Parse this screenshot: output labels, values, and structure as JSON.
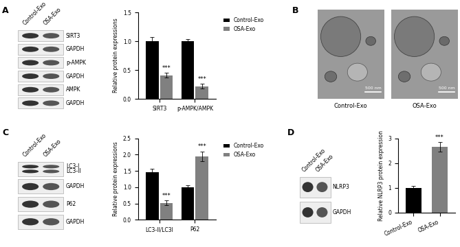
{
  "panel_labels": [
    "A",
    "B",
    "C",
    "D"
  ],
  "blots": [
    {
      "lanes": [
        "Control-Exo",
        "OSA-Exo"
      ],
      "rows": [
        [
          "SIRT3"
        ],
        [
          "GAPDH"
        ],
        [
          "p-AMPK"
        ],
        [
          "GAPDH"
        ],
        [
          "AMPK"
        ],
        [
          "GAPDH"
        ]
      ]
    },
    {
      "lanes": [
        "Control-Exo",
        "OSA-Exo"
      ],
      "rows": [
        [
          "LC3-I",
          "LC3-II"
        ],
        [
          "GAPDH"
        ],
        [
          "P62"
        ],
        [
          "GAPDH"
        ]
      ]
    },
    {
      "lanes": [
        "Control-Exo",
        "OSA-Exo"
      ],
      "rows": [
        [
          "NLRP3"
        ],
        [
          "GAPDH"
        ]
      ]
    }
  ],
  "images": {
    "labels": [
      "Control-Exo",
      "OSA-Exo"
    ],
    "scale_bar": "500 nm"
  },
  "chart_data": [
    {
      "type": "bar",
      "categories": [
        "SIRT3",
        "p-AMPK/AMPK"
      ],
      "y_label": "Relative protein expressions",
      "series": [
        {
          "name": "Control-Exo",
          "color": "#000000",
          "values": [
            1.0,
            1.0
          ],
          "errors": [
            0.07,
            0.04
          ]
        },
        {
          "name": "OSA-Exo",
          "color": "#808080",
          "values": [
            0.41,
            0.22
          ],
          "errors": [
            0.04,
            0.04
          ],
          "annotations": [
            "***",
            "***"
          ]
        }
      ],
      "ylim": [
        0,
        1.5
      ],
      "yticks": [
        {
          "value": 0,
          "label": "0.0"
        },
        {
          "value": 0.5,
          "label": "0.5"
        },
        {
          "value": 1.0,
          "label": "1.0"
        },
        {
          "value": 1.5,
          "label": "1.5"
        }
      ],
      "legend": "upper left"
    },
    {
      "type": "bar",
      "categories": [
        "LC3-II/LC3I",
        "P62"
      ],
      "y_label": "Relative protein expressions",
      "series": [
        {
          "name": "Control-Exo",
          "color": "#000000",
          "values": [
            1.45,
            1.0
          ],
          "errors": [
            0.12,
            0.07
          ]
        },
        {
          "name": "OSA-Exo",
          "color": "#808080",
          "values": [
            0.52,
            1.95
          ],
          "errors": [
            0.08,
            0.15
          ],
          "annotations": [
            "***",
            "***"
          ]
        }
      ],
      "ylim": [
        0,
        2.5
      ],
      "yticks": [
        {
          "value": 0,
          "label": "0.0"
        },
        {
          "value": 0.5,
          "label": "0.5"
        },
        {
          "value": 1.0,
          "label": "1.0"
        },
        {
          "value": 1.5,
          "label": "1.5"
        },
        {
          "value": 2.0,
          "label": "2.0"
        },
        {
          "value": 2.5,
          "label": "2.5"
        }
      ],
      "legend": "upper left"
    },
    {
      "type": "bar",
      "categories": [
        "Control-Exo",
        "OSA-Exo"
      ],
      "y_label": "Relative NLRP3 protein expression",
      "values": [
        1.0,
        2.65
      ],
      "errors": [
        0.08,
        0.2
      ],
      "colors": [
        "#000000",
        "#808080"
      ],
      "annotations": [
        null,
        "***"
      ],
      "ylim": [
        0,
        3
      ],
      "yticks": [
        0,
        1,
        2,
        3
      ]
    }
  ]
}
